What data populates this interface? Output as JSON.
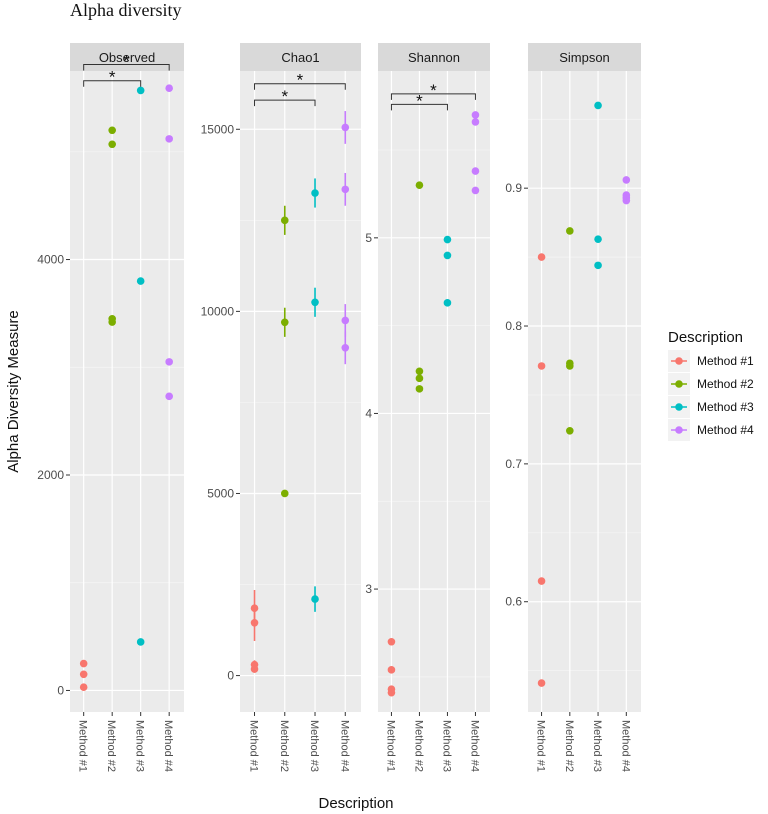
{
  "figure_title": "Alpha diversity",
  "chart_data": {
    "type": "scatter",
    "title": "Alpha diversity",
    "xlabel": "Description",
    "ylabel": "Alpha Diversity Measure",
    "categories": [
      "Method #1",
      "Method #2",
      "Method #3",
      "Method #4"
    ],
    "legend": {
      "title": "Description",
      "position": "right",
      "entries": [
        {
          "label": "Method #1",
          "color": "#f8766d"
        },
        {
          "label": "Method #2",
          "color": "#7cae00"
        },
        {
          "label": "Method #3",
          "color": "#00bfc4"
        },
        {
          "label": "Method #4",
          "color": "#c77cff"
        }
      ]
    },
    "panels": [
      {
        "title": "Observed",
        "ylim": [
          -200,
          5750
        ],
        "yticks": [
          {
            "value": 0,
            "label": "0"
          },
          {
            "value": 2000,
            "label": "2000"
          },
          {
            "value": 4000,
            "label": "4000"
          }
        ],
        "points": [
          {
            "x": "Method #1",
            "y": 250
          },
          {
            "x": "Method #1",
            "y": 150
          },
          {
            "x": "Method #1",
            "y": 30
          },
          {
            "x": "Method #2",
            "y": 5200
          },
          {
            "x": "Method #2",
            "y": 5070
          },
          {
            "x": "Method #2",
            "y": 3450
          },
          {
            "x": "Method #2",
            "y": 3420
          },
          {
            "x": "Method #3",
            "y": 5570
          },
          {
            "x": "Method #3",
            "y": 3800
          },
          {
            "x": "Method #3",
            "y": 450
          },
          {
            "x": "Method #4",
            "y": 5590
          },
          {
            "x": "Method #4",
            "y": 5120
          },
          {
            "x": "Method #4",
            "y": 3050
          },
          {
            "x": "Method #4",
            "y": 2730
          }
        ],
        "significance": [
          {
            "from": "Method #1",
            "to": "Method #3",
            "y": 5660,
            "label": "*"
          },
          {
            "from": "Method #1",
            "to": "Method #4",
            "y": 5810,
            "label": "*"
          }
        ]
      },
      {
        "title": "Chao1",
        "ylim": [
          -1000,
          16600
        ],
        "yticks": [
          {
            "value": 0,
            "label": "0"
          },
          {
            "value": 5000,
            "label": "5000"
          },
          {
            "value": 10000,
            "label": "10000"
          },
          {
            "value": 15000,
            "label": "15000"
          }
        ],
        "points": [
          {
            "x": "Method #1",
            "y": 1850,
            "err": 500
          },
          {
            "x": "Method #1",
            "y": 1450,
            "err": 500
          },
          {
            "x": "Method #1",
            "y": 300,
            "err": 120
          },
          {
            "x": "Method #1",
            "y": 180,
            "err": 100
          },
          {
            "x": "Method #2",
            "y": 12500,
            "err": 400
          },
          {
            "x": "Method #2",
            "y": 9700,
            "err": 400
          },
          {
            "x": "Method #2",
            "y": 5000,
            "err": 60
          },
          {
            "x": "Method #3",
            "y": 13250,
            "err": 400
          },
          {
            "x": "Method #3",
            "y": 10250,
            "err": 400
          },
          {
            "x": "Method #3",
            "y": 2100,
            "err": 350
          },
          {
            "x": "Method #4",
            "y": 15050,
            "err": 450
          },
          {
            "x": "Method #4",
            "y": 13350,
            "err": 450
          },
          {
            "x": "Method #4",
            "y": 9750,
            "err": 450
          },
          {
            "x": "Method #4",
            "y": 9000,
            "err": 450
          }
        ],
        "significance": [
          {
            "from": "Method #1",
            "to": "Method #3",
            "y": 15800,
            "label": "*"
          },
          {
            "from": "Method #1",
            "to": "Method #4",
            "y": 16250,
            "label": "*"
          }
        ]
      },
      {
        "title": "Shannon",
        "ylim": [
          2.3,
          5.95
        ],
        "yticks": [
          {
            "value": 3,
            "label": "3"
          },
          {
            "value": 4,
            "label": "4"
          },
          {
            "value": 5,
            "label": "5"
          }
        ],
        "points": [
          {
            "x": "Method #1",
            "y": 2.7
          },
          {
            "x": "Method #1",
            "y": 2.54
          },
          {
            "x": "Method #1",
            "y": 2.43
          },
          {
            "x": "Method #1",
            "y": 2.41
          },
          {
            "x": "Method #2",
            "y": 5.3
          },
          {
            "x": "Method #2",
            "y": 4.24
          },
          {
            "x": "Method #2",
            "y": 4.2
          },
          {
            "x": "Method #2",
            "y": 4.14
          },
          {
            "x": "Method #3",
            "y": 4.99
          },
          {
            "x": "Method #3",
            "y": 4.9
          },
          {
            "x": "Method #3",
            "y": 4.63
          },
          {
            "x": "Method #4",
            "y": 5.7
          },
          {
            "x": "Method #4",
            "y": 5.66
          },
          {
            "x": "Method #4",
            "y": 5.38
          },
          {
            "x": "Method #4",
            "y": 5.27
          }
        ],
        "significance": [
          {
            "from": "Method #1",
            "to": "Method #3",
            "y": 5.76,
            "label": "*"
          },
          {
            "from": "Method #1",
            "to": "Method #4",
            "y": 5.82,
            "label": "*"
          }
        ]
      },
      {
        "title": "Simpson",
        "ylim": [
          0.52,
          0.985
        ],
        "yticks": [
          {
            "value": 0.6,
            "label": "0.6"
          },
          {
            "value": 0.7,
            "label": "0.7"
          },
          {
            "value": 0.8,
            "label": "0.8"
          },
          {
            "value": 0.9,
            "label": "0.9"
          }
        ],
        "points": [
          {
            "x": "Method #1",
            "y": 0.85
          },
          {
            "x": "Method #1",
            "y": 0.771
          },
          {
            "x": "Method #1",
            "y": 0.615
          },
          {
            "x": "Method #1",
            "y": 0.541
          },
          {
            "x": "Method #2",
            "y": 0.869
          },
          {
            "x": "Method #2",
            "y": 0.773
          },
          {
            "x": "Method #2",
            "y": 0.771
          },
          {
            "x": "Method #2",
            "y": 0.724
          },
          {
            "x": "Method #3",
            "y": 0.96
          },
          {
            "x": "Method #3",
            "y": 0.863
          },
          {
            "x": "Method #3",
            "y": 0.844
          },
          {
            "x": "Method #4",
            "y": 0.906
          },
          {
            "x": "Method #4",
            "y": 0.895
          },
          {
            "x": "Method #4",
            "y": 0.893
          },
          {
            "x": "Method #4",
            "y": 0.891
          }
        ],
        "significance": []
      }
    ]
  }
}
